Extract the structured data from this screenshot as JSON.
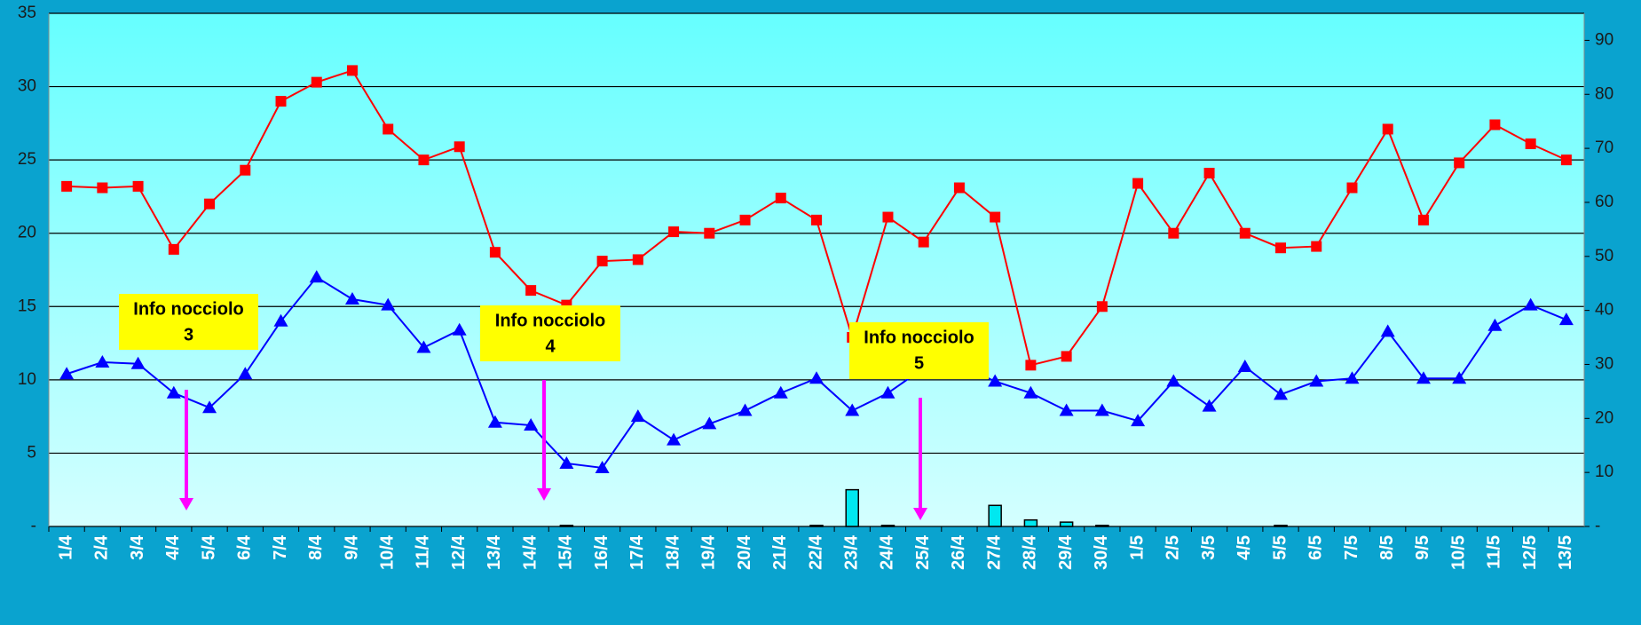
{
  "chart_data": {
    "type": "line",
    "categories": [
      "1/4",
      "2/4",
      "3/4",
      "4/4",
      "5/4",
      "6/4",
      "7/4",
      "8/4",
      "9/4",
      "10/4",
      "11/4",
      "12/4",
      "13/4",
      "14/4",
      "15/4",
      "16/4",
      "17/4",
      "18/4",
      "19/4",
      "20/4",
      "21/4",
      "22/4",
      "23/4",
      "24/4",
      "25/4",
      "26/4",
      "27/4",
      "28/4",
      "29/4",
      "30/4",
      "1/5",
      "2/5",
      "3/5",
      "4/5",
      "5/5",
      "6/5",
      "7/5",
      "8/5",
      "9/5",
      "10/5",
      "11/5",
      "12/5",
      "13/5"
    ],
    "series": [
      {
        "type": "bar",
        "axis": "y2",
        "color": "#00e8f0",
        "values": [
          0,
          0,
          0,
          0,
          0,
          0,
          0,
          0,
          0,
          0,
          0,
          0,
          0,
          0,
          0.2,
          0,
          0,
          0,
          0,
          0,
          0,
          0.2,
          6.8,
          0.2,
          0,
          0,
          3.9,
          1.2,
          0.8,
          0.2,
          0,
          0,
          0,
          0,
          0.2,
          0,
          0,
          0,
          0,
          0,
          0,
          0,
          0
        ]
      },
      {
        "type": "line",
        "color": "#ff0000",
        "marker": "square",
        "values": [
          23.2,
          23.1,
          23.2,
          18.9,
          22.0,
          24.3,
          29.0,
          30.3,
          31.1,
          27.1,
          25.0,
          25.9,
          18.7,
          16.1,
          15.1,
          18.1,
          18.2,
          20.1,
          20.0,
          20.9,
          22.4,
          20.9,
          12.9,
          21.1,
          19.4,
          23.1,
          21.1,
          11.0,
          11.6,
          15.0,
          23.4,
          20.0,
          24.1,
          20.0,
          19.0,
          19.1,
          23.1,
          27.1,
          20.9,
          24.8,
          27.4,
          26.1,
          25.0
        ]
      },
      {
        "type": "line",
        "color": "#0000ff",
        "marker": "triangle",
        "values": [
          10.4,
          11.2,
          11.1,
          9.1,
          8.1,
          10.4,
          14.0,
          17.0,
          15.5,
          15.1,
          12.2,
          13.4,
          7.1,
          6.9,
          4.3,
          4.0,
          7.5,
          5.9,
          7.0,
          7.9,
          9.1,
          10.1,
          7.9,
          9.1,
          10.8,
          11.0,
          9.9,
          9.1,
          7.9,
          7.9,
          7.2,
          9.9,
          8.2,
          10.9,
          9.0,
          9.9,
          10.1,
          13.3,
          10.1,
          10.1,
          13.7,
          15.1,
          14.1
        ]
      }
    ],
    "ylim": [
      0,
      35
    ],
    "yticks": [
      {
        "value": 0,
        "label": "-"
      },
      5,
      10,
      15,
      20,
      25,
      30,
      35
    ],
    "y2lim": [
      0,
      95
    ],
    "y2ticks": [
      {
        "value": 0,
        "label": "-"
      },
      10,
      20,
      30,
      40,
      50,
      60,
      70,
      80,
      90
    ],
    "grid": true,
    "annotations": [
      {
        "lines": [
          "Info nocciolo",
          "3"
        ]
      },
      {
        "lines": [
          "Info nocciolo",
          "4"
        ]
      },
      {
        "lines": [
          "Info nocciolo",
          "5"
        ]
      }
    ]
  }
}
